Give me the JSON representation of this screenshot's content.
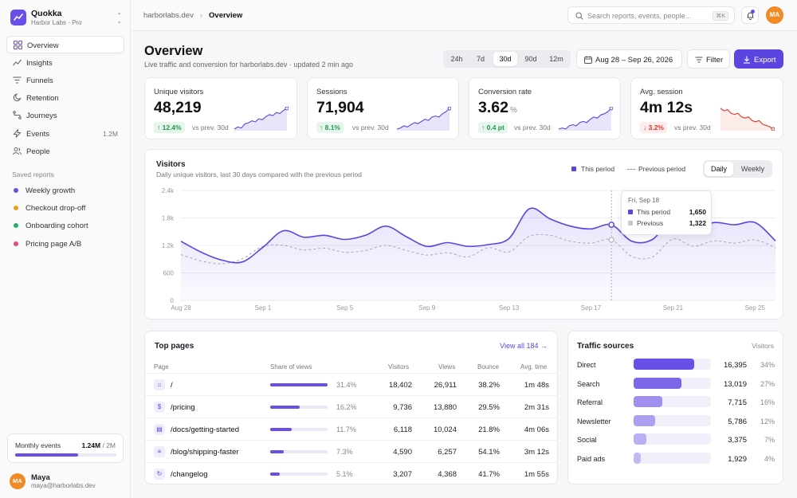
{
  "app": {
    "name": "Quokka",
    "workspace": "Harbor Labs · Pro"
  },
  "sidebar": {
    "nav": [
      {
        "label": "Overview",
        "icon": "grid-icon",
        "active": true
      },
      {
        "label": "Insights",
        "icon": "trend-icon"
      },
      {
        "label": "Funnels",
        "icon": "funnel-icon"
      },
      {
        "label": "Retention",
        "icon": "retention-icon"
      },
      {
        "label": "Journeys",
        "icon": "route-icon"
      },
      {
        "label": "Events",
        "icon": "bolt-icon",
        "count": "1.2M"
      },
      {
        "label": "People",
        "icon": "users-icon"
      }
    ],
    "saved_title": "Saved reports",
    "saved": [
      {
        "label": "Weekly growth",
        "color": "#6a4ee8"
      },
      {
        "label": "Checkout drop-off",
        "color": "#f0a020"
      },
      {
        "label": "Onboarding cohort",
        "color": "#21b06a"
      },
      {
        "label": "Pricing page A/B",
        "color": "#e8477a"
      }
    ],
    "usage": {
      "label": "Monthly events",
      "used": "1.24M",
      "limit": "/ 2M",
      "fraction": 0.62
    },
    "user": {
      "initials": "MA",
      "name": "Maya",
      "email": "maya@harborlabs.dev"
    }
  },
  "topbar": {
    "breadcrumb_root": "harborlabs.dev",
    "breadcrumb_current": "Overview",
    "search_placeholder": "Search reports, events, people...",
    "search_shortcut": "⌘K",
    "avatar": "MA"
  },
  "page": {
    "title": "Overview",
    "subtitle": "Live traffic and conversion for harborlabs.dev · updated 2 min ago",
    "ranges": [
      "24h",
      "7d",
      "30d",
      "90d",
      "12m"
    ],
    "selected_range": "30d",
    "date_range": "Aug 28 – Sep 26, 2026",
    "filter_label": "Filter",
    "export_label": "Export"
  },
  "kpis": [
    {
      "label": "Unique visitors",
      "value": "48,219",
      "unit": "",
      "delta": "↑ 12.4%",
      "trend": "up",
      "vs": "vs prev. 30d",
      "spark": [
        10,
        12,
        11,
        15,
        16,
        18,
        17,
        20,
        19,
        22,
        24,
        23,
        26,
        25,
        28,
        30
      ]
    },
    {
      "label": "Sessions",
      "value": "71,904",
      "unit": "",
      "delta": "↑ 8.1%",
      "trend": "up",
      "vs": "vs prev. 30d",
      "spark": [
        10,
        11,
        13,
        12,
        14,
        16,
        15,
        17,
        19,
        18,
        21,
        22,
        21,
        24,
        26,
        29
      ]
    },
    {
      "label": "Conversion rate",
      "value": "3.62",
      "unit": "%",
      "delta": "↑ 0.4 pt",
      "trend": "up",
      "vs": "vs prev. 30d",
      "spark": [
        10,
        11,
        10,
        13,
        14,
        13,
        16,
        17,
        16,
        19,
        21,
        20,
        23,
        24,
        26,
        29
      ]
    },
    {
      "label": "Avg. session",
      "value": "4m 12s",
      "unit": "",
      "delta": "↓ 3.2%",
      "trend": "down",
      "vs": "vs prev. 30d",
      "spark": [
        28,
        26,
        27,
        24,
        23,
        24,
        21,
        20,
        21,
        18,
        17,
        18,
        15,
        14,
        13,
        11
      ]
    }
  ],
  "visitors_chart": {
    "title": "Visitors",
    "subtitle": "Daily unique visitors, last 30 days compared with the previous period",
    "legend_this": "This period",
    "legend_prev": "Previous period",
    "views": [
      "Daily",
      "Weekly"
    ],
    "selected_view": "Daily",
    "tooltip": {
      "date": "Fri, Sep 18",
      "this_label": "This period",
      "this_value": "1,650",
      "prev_label": "Previous",
      "prev_value": "1,322"
    }
  },
  "chart_data": {
    "type": "area",
    "y_ticks": [
      "0",
      "600",
      "1.2k",
      "1.8k",
      "2.4k"
    ],
    "ylim": [
      0,
      2400
    ],
    "x_labels": [
      "Aug 28",
      "Sep 1",
      "Sep 5",
      "Sep 9",
      "Sep 13",
      "Sep 17",
      "Sep 21",
      "Sep 25"
    ],
    "x_label_index": [
      0,
      4,
      8,
      12,
      16,
      20,
      24,
      28
    ],
    "highlight_index": 21,
    "series": [
      {
        "name": "This period",
        "color": "#5b45e0",
        "values": [
          1290,
          1050,
          880,
          840,
          1160,
          1520,
          1380,
          1420,
          1330,
          1420,
          1620,
          1390,
          1180,
          1260,
          1180,
          1220,
          1350,
          2000,
          1780,
          1620,
          1560,
          1650,
          1290,
          1330,
          1780,
          1560,
          1700,
          1650,
          1700,
          1300
        ]
      },
      {
        "name": "Previous",
        "color": "#a6a6b2",
        "values": [
          1000,
          860,
          800,
          910,
          1180,
          1200,
          1100,
          1140,
          1050,
          1090,
          1200,
          1090,
          990,
          1040,
          950,
          1150,
          1060,
          1400,
          1420,
          1290,
          1250,
          1322,
          960,
          950,
          1340,
          1180,
          1300,
          1250,
          1320,
          1150
        ]
      }
    ]
  },
  "top_pages": {
    "title": "Top pages",
    "view_all": "View all 184 →",
    "columns": [
      "Page",
      "Share of views",
      "Visitors",
      "Views",
      "Bounce",
      "Avg. time"
    ],
    "rows": [
      {
        "icon": "home-icon",
        "glyph": "⌂",
        "path": "/",
        "share": 0.314,
        "share_label": "31.4%",
        "visitors": "18,402",
        "views": "26,911",
        "bounce": "38.2%",
        "time": "1m 48s"
      },
      {
        "icon": "dollar-icon",
        "glyph": "$",
        "path": "/pricing",
        "share": 0.162,
        "share_label": "16.2%",
        "visitors": "9,736",
        "views": "13,880",
        "bounce": "29.5%",
        "time": "2m 31s"
      },
      {
        "icon": "doc-icon",
        "glyph": "▤",
        "path": "/docs/getting-started",
        "share": 0.117,
        "share_label": "11.7%",
        "visitors": "6,118",
        "views": "10,024",
        "bounce": "21.8%",
        "time": "4m 06s"
      },
      {
        "icon": "page-icon",
        "glyph": "≡",
        "path": "/blog/shipping-faster",
        "share": 0.073,
        "share_label": "7.3%",
        "visitors": "4,590",
        "views": "6,257",
        "bounce": "54.1%",
        "time": "3m 12s"
      },
      {
        "icon": "refresh-icon",
        "glyph": "↻",
        "path": "/changelog",
        "share": 0.051,
        "share_label": "5.1%",
        "visitors": "3,207",
        "views": "4,368",
        "bounce": "41.7%",
        "time": "1m 55s"
      }
    ]
  },
  "traffic_sources": {
    "title": "Traffic sources",
    "column": "Visitors",
    "rows": [
      {
        "name": "Direct",
        "value": "16,395",
        "pct": "34%",
        "share": 0.34
      },
      {
        "name": "Search",
        "value": "13,019",
        "pct": "27%",
        "share": 0.27
      },
      {
        "name": "Referral",
        "value": "7,715",
        "pct": "16%",
        "share": 0.16
      },
      {
        "name": "Newsletter",
        "value": "5,786",
        "pct": "12%",
        "share": 0.12
      },
      {
        "name": "Social",
        "value": "3,375",
        "pct": "7%",
        "share": 0.07
      },
      {
        "name": "Paid ads",
        "value": "1,929",
        "pct": "4%",
        "share": 0.04
      }
    ]
  }
}
